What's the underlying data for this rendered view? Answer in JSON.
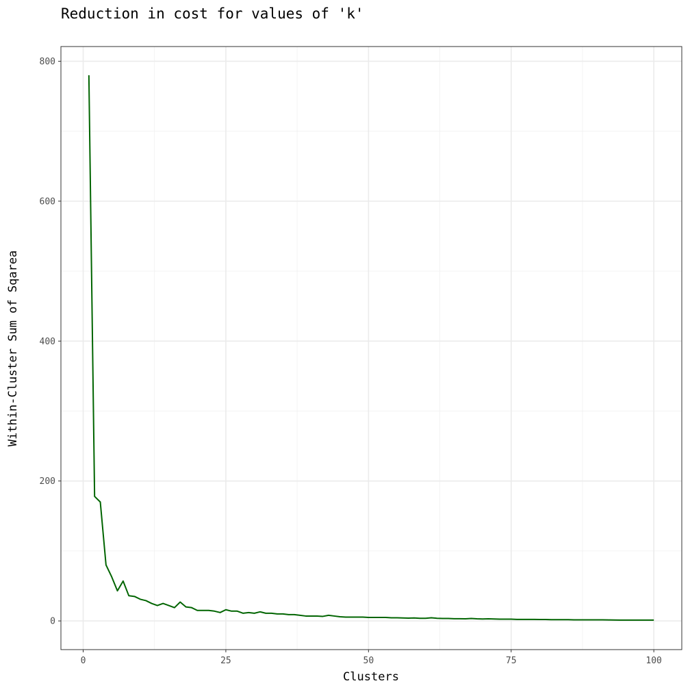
{
  "chart_data": {
    "type": "line",
    "title": "Reduction in cost for values of 'k'",
    "xlabel": "Clusters",
    "ylabel": "Within-Cluster Sum of Sqarea",
    "xlim": [
      -3.9,
      104.9
    ],
    "ylim": [
      -41,
      821
    ],
    "x_ticks": [
      0,
      25,
      50,
      75,
      100
    ],
    "x_tick_labels": [
      "0",
      "25",
      "50",
      "75",
      "100"
    ],
    "y_ticks": [
      0,
      200,
      400,
      600,
      800
    ],
    "y_tick_labels": [
      "0",
      "200",
      "400",
      "600",
      "800"
    ],
    "x_minor_ticks": [
      12.5,
      37.5,
      62.5,
      87.5
    ],
    "y_minor_ticks": [
      100,
      300,
      500,
      700
    ],
    "grid": true,
    "legend": "none",
    "series": [
      {
        "color": "#006400",
        "x": [
          1,
          2,
          3,
          4,
          5,
          6,
          7,
          8,
          9,
          10,
          11,
          12,
          13,
          14,
          15,
          16,
          17,
          18,
          19,
          20,
          21,
          22,
          23,
          24,
          25,
          26,
          27,
          28,
          29,
          30,
          31,
          32,
          33,
          34,
          35,
          36,
          37,
          38,
          39,
          40,
          41,
          42,
          43,
          44,
          45,
          46,
          47,
          48,
          49,
          50,
          51,
          52,
          53,
          54,
          55,
          56,
          57,
          58,
          59,
          60,
          61,
          62,
          63,
          64,
          65,
          66,
          67,
          68,
          69,
          70,
          71,
          72,
          73,
          74,
          75,
          76,
          77,
          78,
          79,
          80,
          81,
          82,
          83,
          84,
          85,
          86,
          87,
          88,
          89,
          90,
          91,
          92,
          93,
          94,
          95,
          96,
          97,
          98,
          99,
          100
        ],
        "values": [
          780,
          178,
          170,
          80,
          63,
          43,
          57,
          36,
          35,
          31,
          29,
          25,
          22,
          25,
          22,
          19,
          27,
          20,
          19,
          15,
          15,
          15,
          14,
          12,
          16,
          14,
          14,
          11,
          12,
          11,
          13,
          11,
          11,
          10,
          10,
          9,
          9,
          8,
          7,
          7,
          7,
          6.5,
          8,
          7,
          6,
          5.5,
          5.5,
          5.5,
          5.5,
          5,
          5,
          5,
          5,
          4.5,
          4.5,
          4.2,
          4,
          4.2,
          3.8,
          3.8,
          4.5,
          3.8,
          3.5,
          3.5,
          3.2,
          3.2,
          3,
          3.5,
          3,
          2.8,
          3,
          2.8,
          2.5,
          2.5,
          2.5,
          2.2,
          2.2,
          2.2,
          2.2,
          2,
          2,
          1.8,
          1.8,
          1.8,
          1.8,
          1.6,
          1.6,
          1.6,
          1.5,
          1.5,
          1.5,
          1.4,
          1.3,
          1.2,
          1.2,
          1.2,
          1.2,
          1.2,
          1.2,
          1.2
        ]
      }
    ]
  }
}
